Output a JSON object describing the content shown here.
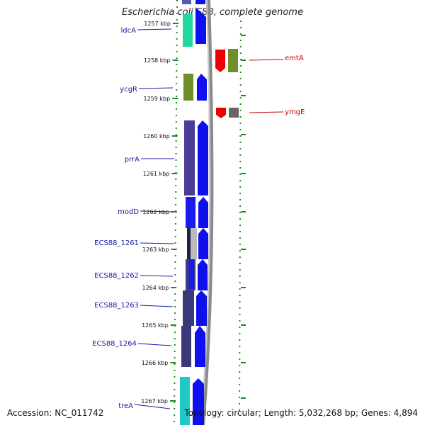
{
  "title": "Escherichia coli S88, complete genome",
  "footer": {
    "accession": "Accession: NC_011742",
    "summary": "Topology: circular; Length: 5,032,268 bp; Genes: 4,894"
  },
  "colors": {
    "left_label": "#1a1aaa",
    "right_label": "#cc0000",
    "ruler_dots": "#1f8a1f",
    "backbone": "#888888"
  },
  "ruler_labels": [
    "1257 kbp",
    "1258 kbp",
    "1259 kbp",
    "1260 kbp",
    "1261 kbp",
    "1262 kbp",
    "1263 kbp",
    "1264 kbp",
    "1265 kbp",
    "1266 kbp",
    "1267 kbp"
  ],
  "left_genes": [
    {
      "name": "ldcA"
    },
    {
      "name": "ycgR"
    },
    {
      "name": "prrA"
    },
    {
      "name": "modD"
    },
    {
      "name": "ECS88_1261"
    },
    {
      "name": "ECS88_1262"
    },
    {
      "name": "ECS88_1263"
    },
    {
      "name": "ECS88_1264"
    },
    {
      "name": "treA"
    }
  ],
  "right_genes": [
    {
      "name": "emtA"
    },
    {
      "name": "ymgE"
    }
  ]
}
